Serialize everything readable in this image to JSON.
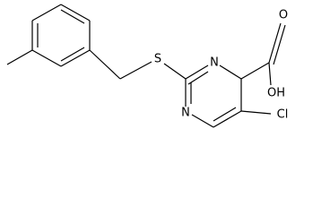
{
  "atoms": {
    "sulfur": "S",
    "nitrogen_top": "N",
    "nitrogen_bottom": "N",
    "oxygen": "O",
    "hydroxyl": "OH",
    "chlorine": "Cl"
  }
}
